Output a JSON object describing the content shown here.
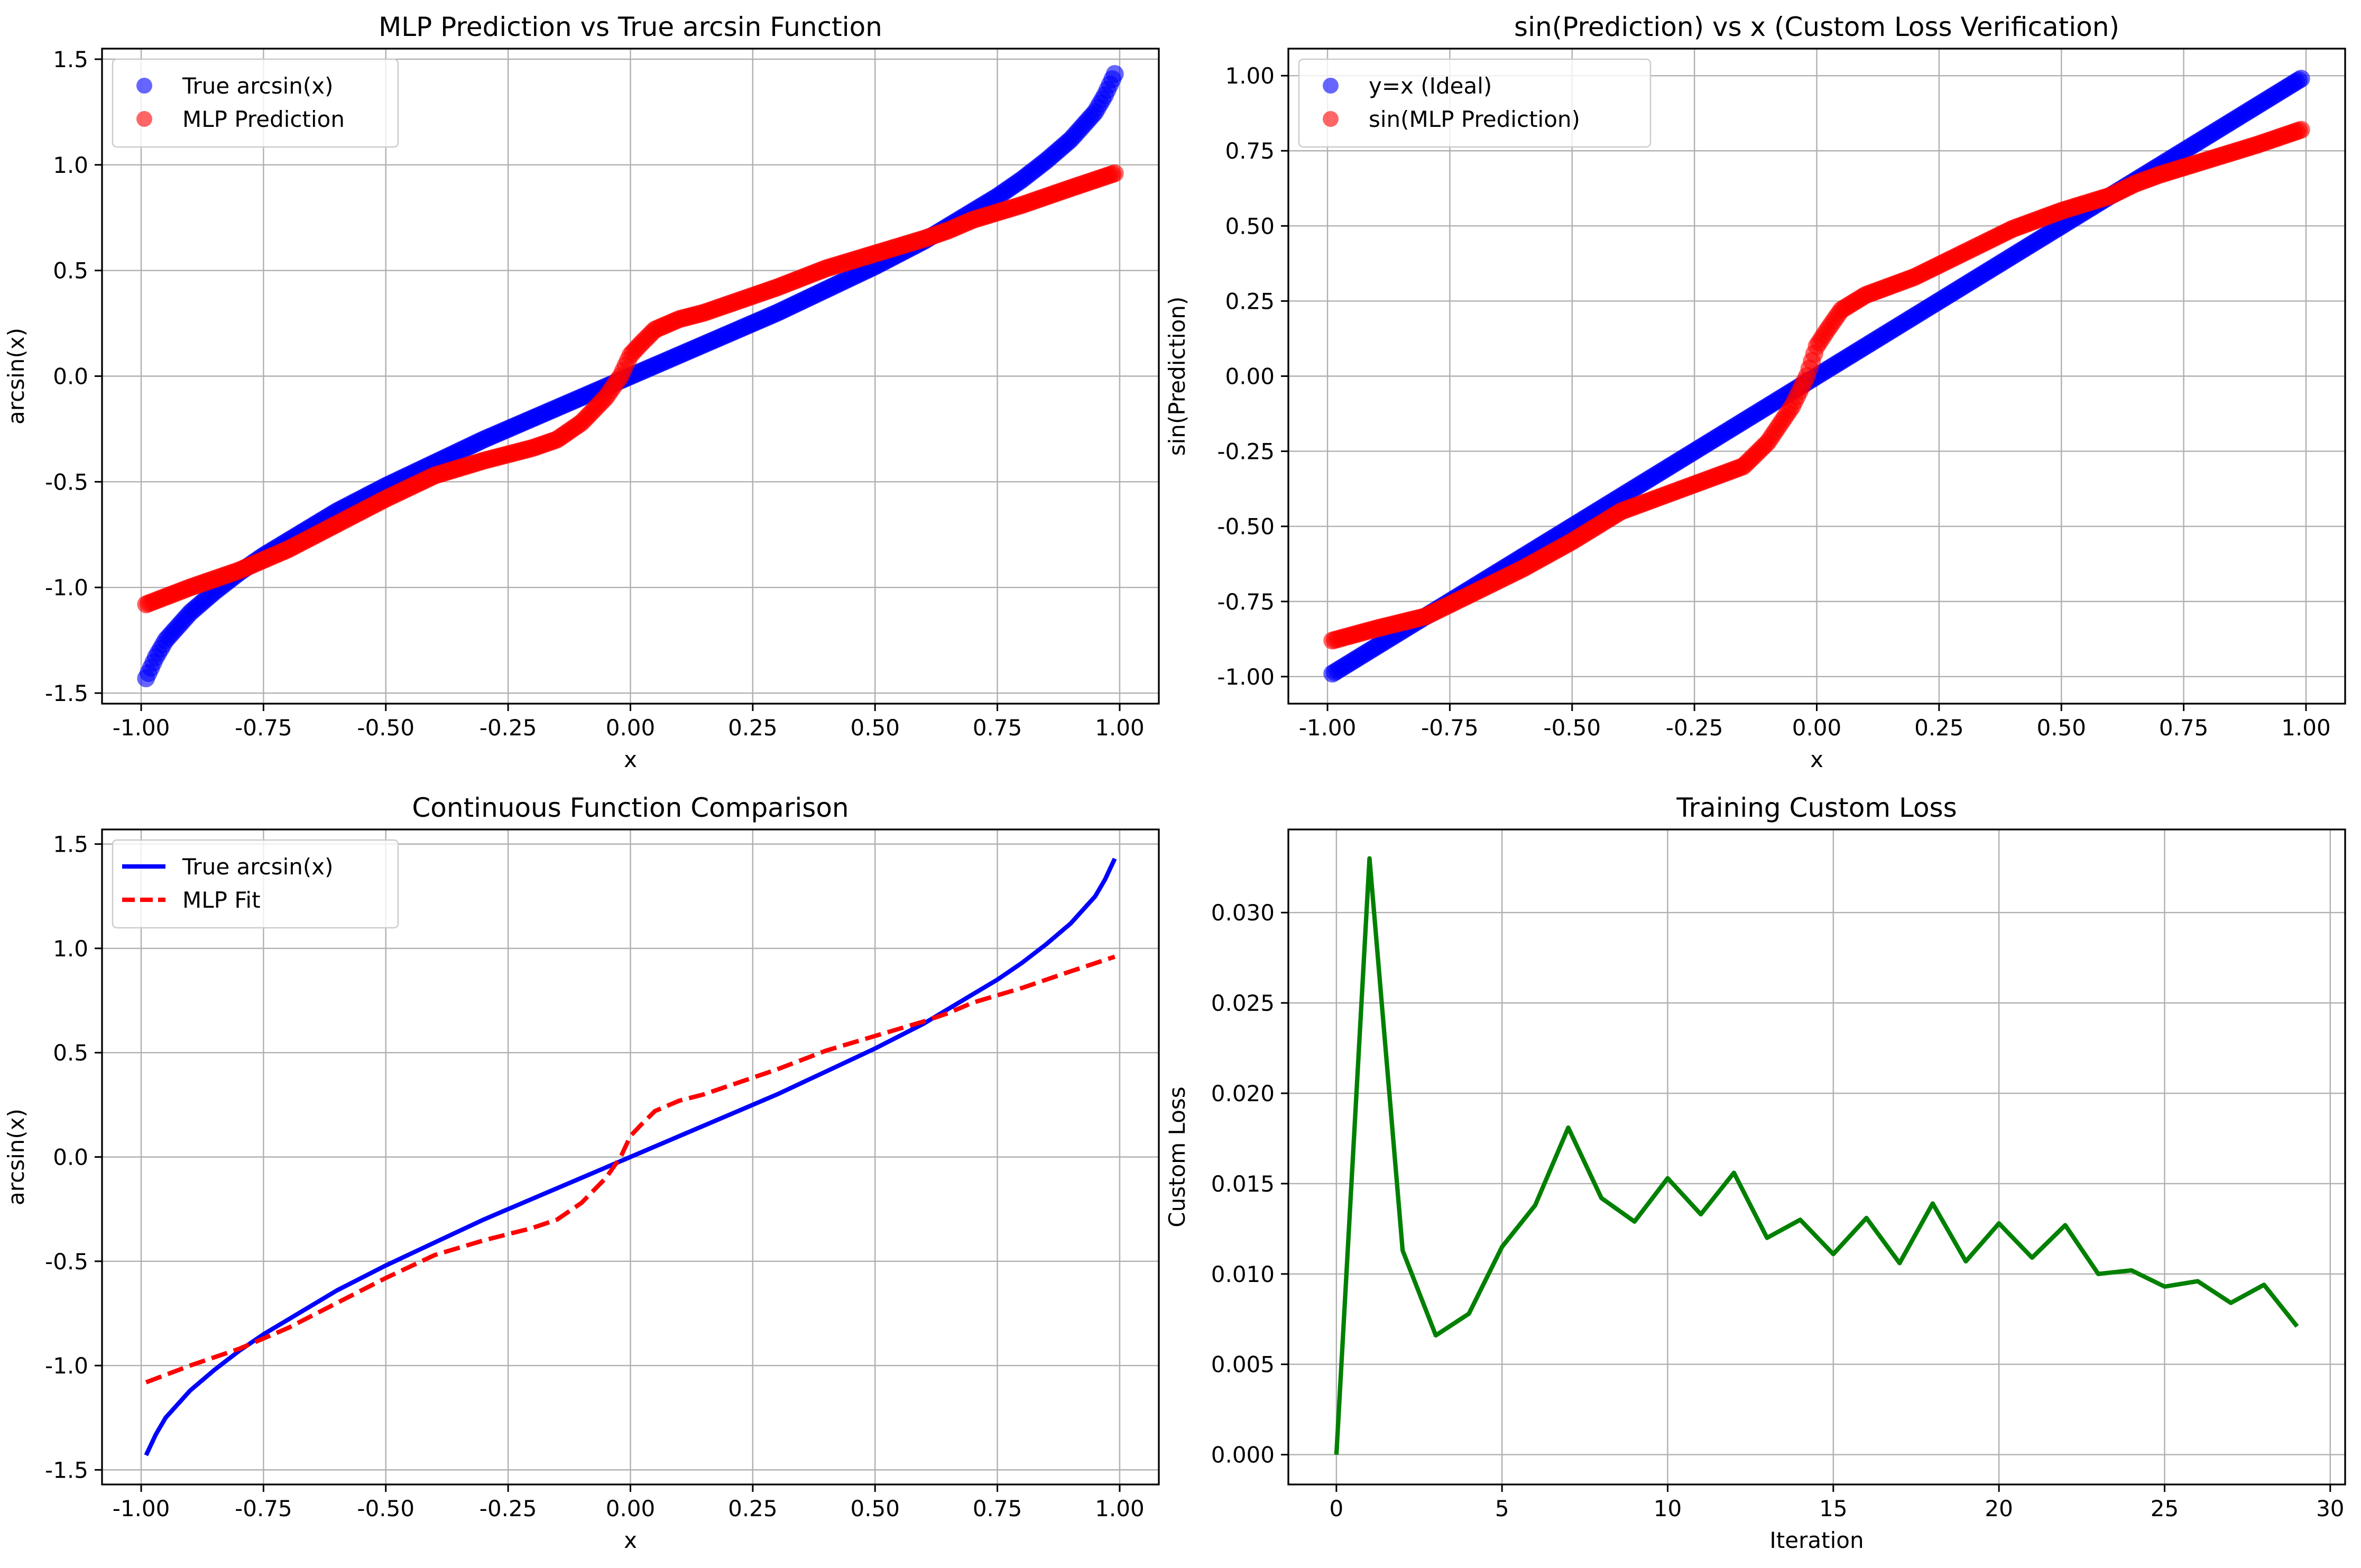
{
  "figure": {
    "colors": {
      "blue": "#0000ff",
      "red": "#ff0000",
      "green": "#008000",
      "grid": "#b0b0b0",
      "axes": "#000000"
    }
  },
  "chart_data": [
    {
      "type": "scatter",
      "title": "MLP Prediction vs True arcsin Function",
      "xlabel": "x",
      "ylabel": "arcsin(x)",
      "xlim": [
        -1.08,
        1.08
      ],
      "ylim": [
        -1.55,
        1.55
      ],
      "xticks": [
        -1.0,
        -0.75,
        -0.5,
        -0.25,
        0.0,
        0.25,
        0.5,
        0.75,
        1.0
      ],
      "xtick_labels": [
        "-1.00",
        "-0.75",
        "-0.50",
        "-0.25",
        "0.00",
        "0.25",
        "0.50",
        "0.75",
        "1.00"
      ],
      "yticks": [
        -1.5,
        -1.0,
        -0.5,
        0.0,
        0.5,
        1.0,
        1.5
      ],
      "ytick_labels": [
        "-1.5",
        "-1.0",
        "-0.5",
        "0.0",
        "0.5",
        "1.0",
        "1.5"
      ],
      "grid": true,
      "legend_position": "upper-left",
      "series": [
        {
          "name": "True arcsin(x)",
          "color": "#0000ff",
          "marker": "circle",
          "x": [
            -0.99,
            -0.97,
            -0.95,
            -0.9,
            -0.85,
            -0.8,
            -0.75,
            -0.7,
            -0.65,
            -0.6,
            -0.5,
            -0.4,
            -0.3,
            -0.2,
            -0.1,
            0.0,
            0.1,
            0.2,
            0.3,
            0.4,
            0.5,
            0.6,
            0.65,
            0.7,
            0.75,
            0.8,
            0.85,
            0.9,
            0.95,
            0.97,
            0.99
          ],
          "y": [
            -1.43,
            -1.33,
            -1.25,
            -1.12,
            -1.02,
            -0.93,
            -0.85,
            -0.78,
            -0.71,
            -0.64,
            -0.52,
            -0.41,
            -0.3,
            -0.2,
            -0.1,
            0.0,
            0.1,
            0.2,
            0.3,
            0.41,
            0.52,
            0.64,
            0.71,
            0.78,
            0.85,
            0.93,
            1.02,
            1.12,
            1.25,
            1.33,
            1.43
          ]
        },
        {
          "name": "MLP Prediction",
          "color": "#ff0000",
          "marker": "circle",
          "x": [
            -0.99,
            -0.9,
            -0.8,
            -0.75,
            -0.7,
            -0.6,
            -0.5,
            -0.4,
            -0.3,
            -0.2,
            -0.15,
            -0.1,
            -0.05,
            -0.02,
            0.0,
            0.02,
            0.05,
            0.1,
            0.15,
            0.2,
            0.3,
            0.4,
            0.5,
            0.6,
            0.65,
            0.7,
            0.8,
            0.9,
            0.99
          ],
          "y": [
            -1.08,
            -1.0,
            -0.92,
            -0.87,
            -0.82,
            -0.7,
            -0.58,
            -0.47,
            -0.4,
            -0.34,
            -0.3,
            -0.22,
            -0.1,
            0.0,
            0.1,
            0.15,
            0.22,
            0.27,
            0.3,
            0.34,
            0.42,
            0.51,
            0.58,
            0.65,
            0.69,
            0.74,
            0.81,
            0.89,
            0.96
          ]
        }
      ]
    },
    {
      "type": "scatter",
      "title": "sin(Prediction) vs x (Custom Loss Verification)",
      "xlabel": "x",
      "ylabel": "sin(Prediction)",
      "xlim": [
        -1.08,
        1.08
      ],
      "ylim": [
        -1.09,
        1.09
      ],
      "xticks": [
        -1.0,
        -0.75,
        -0.5,
        -0.25,
        0.0,
        0.25,
        0.5,
        0.75,
        1.0
      ],
      "xtick_labels": [
        "-1.00",
        "-0.75",
        "-0.50",
        "-0.25",
        "0.00",
        "0.25",
        "0.50",
        "0.75",
        "1.00"
      ],
      "yticks": [
        -1.0,
        -0.75,
        -0.5,
        -0.25,
        0.0,
        0.25,
        0.5,
        0.75,
        1.0
      ],
      "ytick_labels": [
        "-1.00",
        "-0.75",
        "-0.50",
        "-0.25",
        "0.00",
        "0.25",
        "0.50",
        "0.75",
        "1.00"
      ],
      "grid": true,
      "legend_position": "upper-left",
      "series": [
        {
          "name": "y=x (Ideal)",
          "color": "#0000ff",
          "marker": "circle",
          "x": [
            -0.99,
            -0.9,
            -0.8,
            -0.7,
            -0.6,
            -0.5,
            -0.4,
            -0.3,
            -0.2,
            -0.1,
            0.0,
            0.1,
            0.2,
            0.3,
            0.4,
            0.5,
            0.6,
            0.7,
            0.8,
            0.9,
            0.99
          ],
          "y": [
            -0.99,
            -0.9,
            -0.8,
            -0.7,
            -0.6,
            -0.5,
            -0.4,
            -0.3,
            -0.2,
            -0.1,
            0.0,
            0.1,
            0.2,
            0.3,
            0.4,
            0.5,
            0.6,
            0.7,
            0.8,
            0.9,
            0.99
          ]
        },
        {
          "name": "sin(MLP Prediction)",
          "color": "#ff0000",
          "marker": "circle",
          "x": [
            -0.99,
            -0.9,
            -0.8,
            -0.75,
            -0.7,
            -0.6,
            -0.5,
            -0.4,
            -0.3,
            -0.2,
            -0.15,
            -0.1,
            -0.05,
            -0.02,
            0.0,
            0.02,
            0.05,
            0.1,
            0.15,
            0.2,
            0.3,
            0.4,
            0.5,
            0.6,
            0.65,
            0.7,
            0.8,
            0.9,
            0.99
          ],
          "y": [
            -0.88,
            -0.84,
            -0.8,
            -0.76,
            -0.72,
            -0.64,
            -0.55,
            -0.45,
            -0.39,
            -0.33,
            -0.3,
            -0.22,
            -0.1,
            0.0,
            0.1,
            0.15,
            0.22,
            0.27,
            0.3,
            0.33,
            0.41,
            0.49,
            0.55,
            0.6,
            0.64,
            0.67,
            0.72,
            0.77,
            0.82
          ]
        }
      ]
    },
    {
      "type": "line",
      "title": "Continuous Function Comparison",
      "xlabel": "x",
      "ylabel": "arcsin(x)",
      "xlim": [
        -1.08,
        1.08
      ],
      "ylim": [
        -1.57,
        1.57
      ],
      "xticks": [
        -1.0,
        -0.75,
        -0.5,
        -0.25,
        0.0,
        0.25,
        0.5,
        0.75,
        1.0
      ],
      "xtick_labels": [
        "-1.00",
        "-0.75",
        "-0.50",
        "-0.25",
        "0.00",
        "0.25",
        "0.50",
        "0.75",
        "1.00"
      ],
      "yticks": [
        -1.5,
        -1.0,
        -0.5,
        0.0,
        0.5,
        1.0,
        1.5
      ],
      "ytick_labels": [
        "-1.5",
        "-1.0",
        "-0.5",
        "0.0",
        "0.5",
        "1.0",
        "1.5"
      ],
      "grid": true,
      "legend_position": "upper-left",
      "series": [
        {
          "name": "True arcsin(x)",
          "color": "#0000ff",
          "style": "solid",
          "x": [
            -0.99,
            -0.97,
            -0.95,
            -0.9,
            -0.85,
            -0.8,
            -0.75,
            -0.7,
            -0.65,
            -0.6,
            -0.5,
            -0.4,
            -0.3,
            -0.2,
            -0.1,
            0.0,
            0.1,
            0.2,
            0.3,
            0.4,
            0.5,
            0.6,
            0.65,
            0.7,
            0.75,
            0.8,
            0.85,
            0.9,
            0.95,
            0.97,
            0.99
          ],
          "y": [
            -1.43,
            -1.33,
            -1.25,
            -1.12,
            -1.02,
            -0.93,
            -0.85,
            -0.78,
            -0.71,
            -0.64,
            -0.52,
            -0.41,
            -0.3,
            -0.2,
            -0.1,
            0.0,
            0.1,
            0.2,
            0.3,
            0.41,
            0.52,
            0.64,
            0.71,
            0.78,
            0.85,
            0.93,
            1.02,
            1.12,
            1.25,
            1.33,
            1.43
          ]
        },
        {
          "name": "MLP Fit",
          "color": "#ff0000",
          "style": "dashed",
          "x": [
            -0.99,
            -0.9,
            -0.8,
            -0.75,
            -0.7,
            -0.6,
            -0.5,
            -0.4,
            -0.3,
            -0.2,
            -0.15,
            -0.1,
            -0.05,
            -0.02,
            0.0,
            0.02,
            0.05,
            0.1,
            0.15,
            0.2,
            0.3,
            0.4,
            0.5,
            0.6,
            0.65,
            0.7,
            0.8,
            0.9,
            0.99
          ],
          "y": [
            -1.08,
            -1.0,
            -0.92,
            -0.87,
            -0.82,
            -0.7,
            -0.58,
            -0.47,
            -0.4,
            -0.34,
            -0.3,
            -0.22,
            -0.1,
            0.0,
            0.1,
            0.15,
            0.22,
            0.27,
            0.3,
            0.34,
            0.42,
            0.51,
            0.58,
            0.65,
            0.69,
            0.74,
            0.81,
            0.89,
            0.96
          ]
        }
      ]
    },
    {
      "type": "line",
      "title": "Training Custom Loss",
      "xlabel": "Iteration",
      "ylabel": "Custom Loss",
      "xlim": [
        -1.45,
        30.45
      ],
      "ylim": [
        -0.00165,
        0.0346
      ],
      "xticks": [
        0,
        5,
        10,
        15,
        20,
        25,
        30
      ],
      "xtick_labels": [
        "0",
        "5",
        "10",
        "15",
        "20",
        "25",
        "30"
      ],
      "yticks": [
        0.0,
        0.005,
        0.01,
        0.015,
        0.02,
        0.025,
        0.03
      ],
      "ytick_labels": [
        "0.000",
        "0.005",
        "0.010",
        "0.015",
        "0.020",
        "0.025",
        "0.030"
      ],
      "grid": true,
      "series": [
        {
          "color": "#008000",
          "style": "solid",
          "x": [
            0,
            1,
            2,
            3,
            4,
            5,
            6,
            7,
            8,
            9,
            10,
            11,
            12,
            13,
            14,
            15,
            16,
            17,
            18,
            19,
            20,
            21,
            22,
            23,
            24,
            25,
            26,
            27,
            28,
            29
          ],
          "y": [
            0.0,
            0.033,
            0.0113,
            0.0066,
            0.0078,
            0.0115,
            0.0138,
            0.0181,
            0.0142,
            0.0129,
            0.0153,
            0.0133,
            0.0156,
            0.012,
            0.013,
            0.0111,
            0.0131,
            0.0106,
            0.0139,
            0.0107,
            0.0128,
            0.0109,
            0.0127,
            0.01,
            0.0102,
            0.0093,
            0.0096,
            0.0084,
            0.0094,
            0.0071
          ]
        }
      ]
    }
  ]
}
